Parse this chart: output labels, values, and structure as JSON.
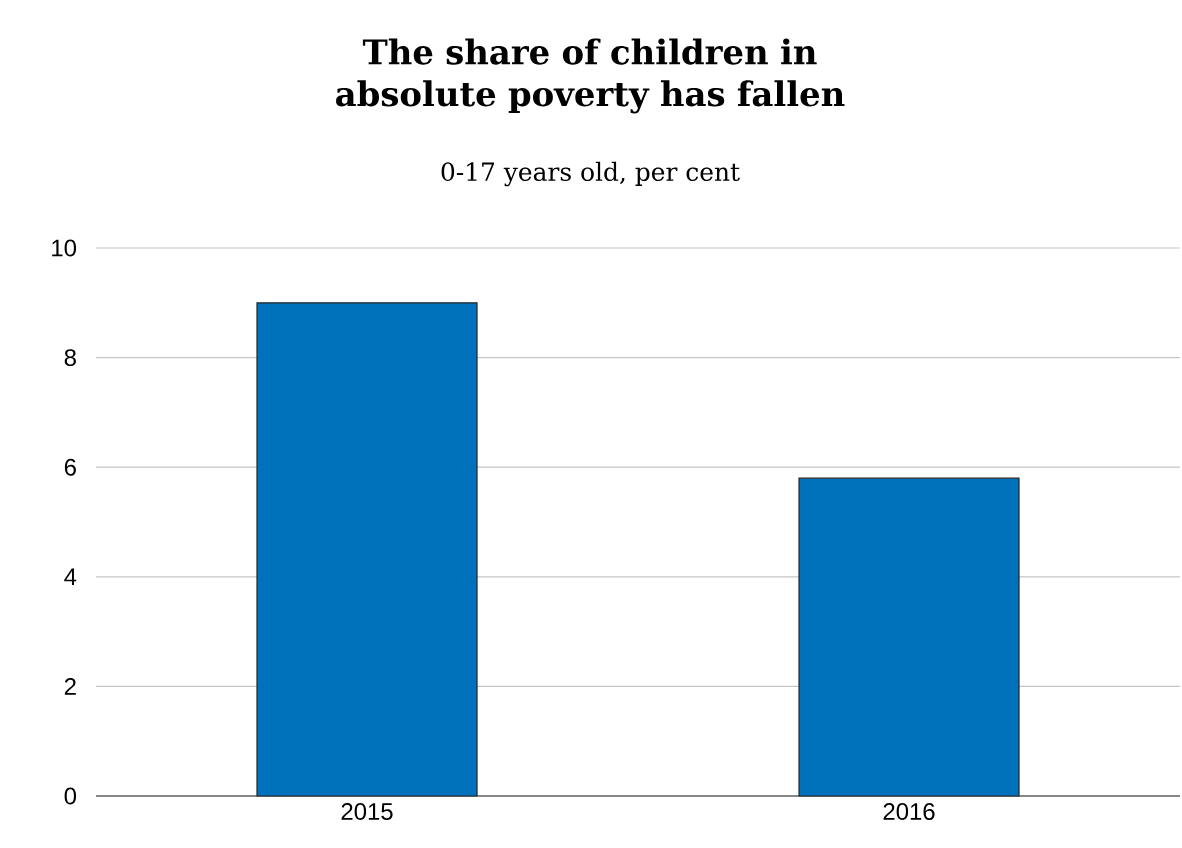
{
  "chart_data": {
    "type": "bar",
    "title": "The share of children in absolute poverty has fallen",
    "subtitle": "0-17 years old, per cent",
    "categories": [
      "2015",
      "2016"
    ],
    "values": [
      9.0,
      5.8
    ],
    "color": "#0072bb",
    "ylim": [
      0,
      10
    ],
    "yticks": [
      0,
      2,
      4,
      6,
      8,
      10
    ],
    "grid": "y"
  }
}
